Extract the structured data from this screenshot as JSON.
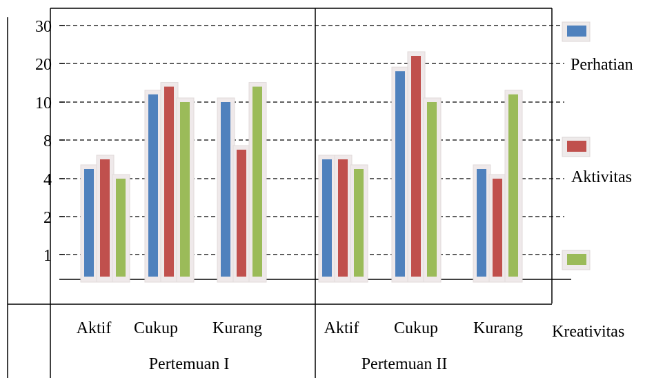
{
  "chart_data": {
    "type": "bar",
    "y_axis_ticks": [
      "30",
      "20",
      "10",
      "8",
      "4",
      "2",
      "1"
    ],
    "groups": [
      {
        "label": "Pertemuan I",
        "categories": [
          "Aktif",
          "Cukup",
          "Kurang"
        ],
        "series": [
          {
            "name": "Perhatian",
            "color": "#4F81BD",
            "values": [
              5,
              12,
              10
            ]
          },
          {
            "name": "Aktivitas",
            "color": "#C0504D",
            "values": [
              6,
              14,
              7
            ]
          },
          {
            "name": "Kreativitas",
            "color": "#9BBB59",
            "values": [
              4,
              10,
              14
            ]
          }
        ]
      },
      {
        "label": "Pertemuan II",
        "categories": [
          "Aktif",
          "Cukup",
          "Kurang"
        ],
        "series": [
          {
            "name": "Perhatian",
            "color": "#4F81BD",
            "values": [
              6,
              18,
              5
            ]
          },
          {
            "name": "Aktivitas",
            "color": "#C0504D",
            "values": [
              6,
              22,
              4
            ]
          },
          {
            "name": "Kreativitas",
            "color": "#9BBB59",
            "values": [
              5,
              10,
              12
            ]
          }
        ]
      }
    ],
    "legend": [
      "Perhatian",
      "Aktivitas",
      "Kreativitas"
    ],
    "grid": true,
    "grid_style": "dashed",
    "legend_position": "right"
  }
}
